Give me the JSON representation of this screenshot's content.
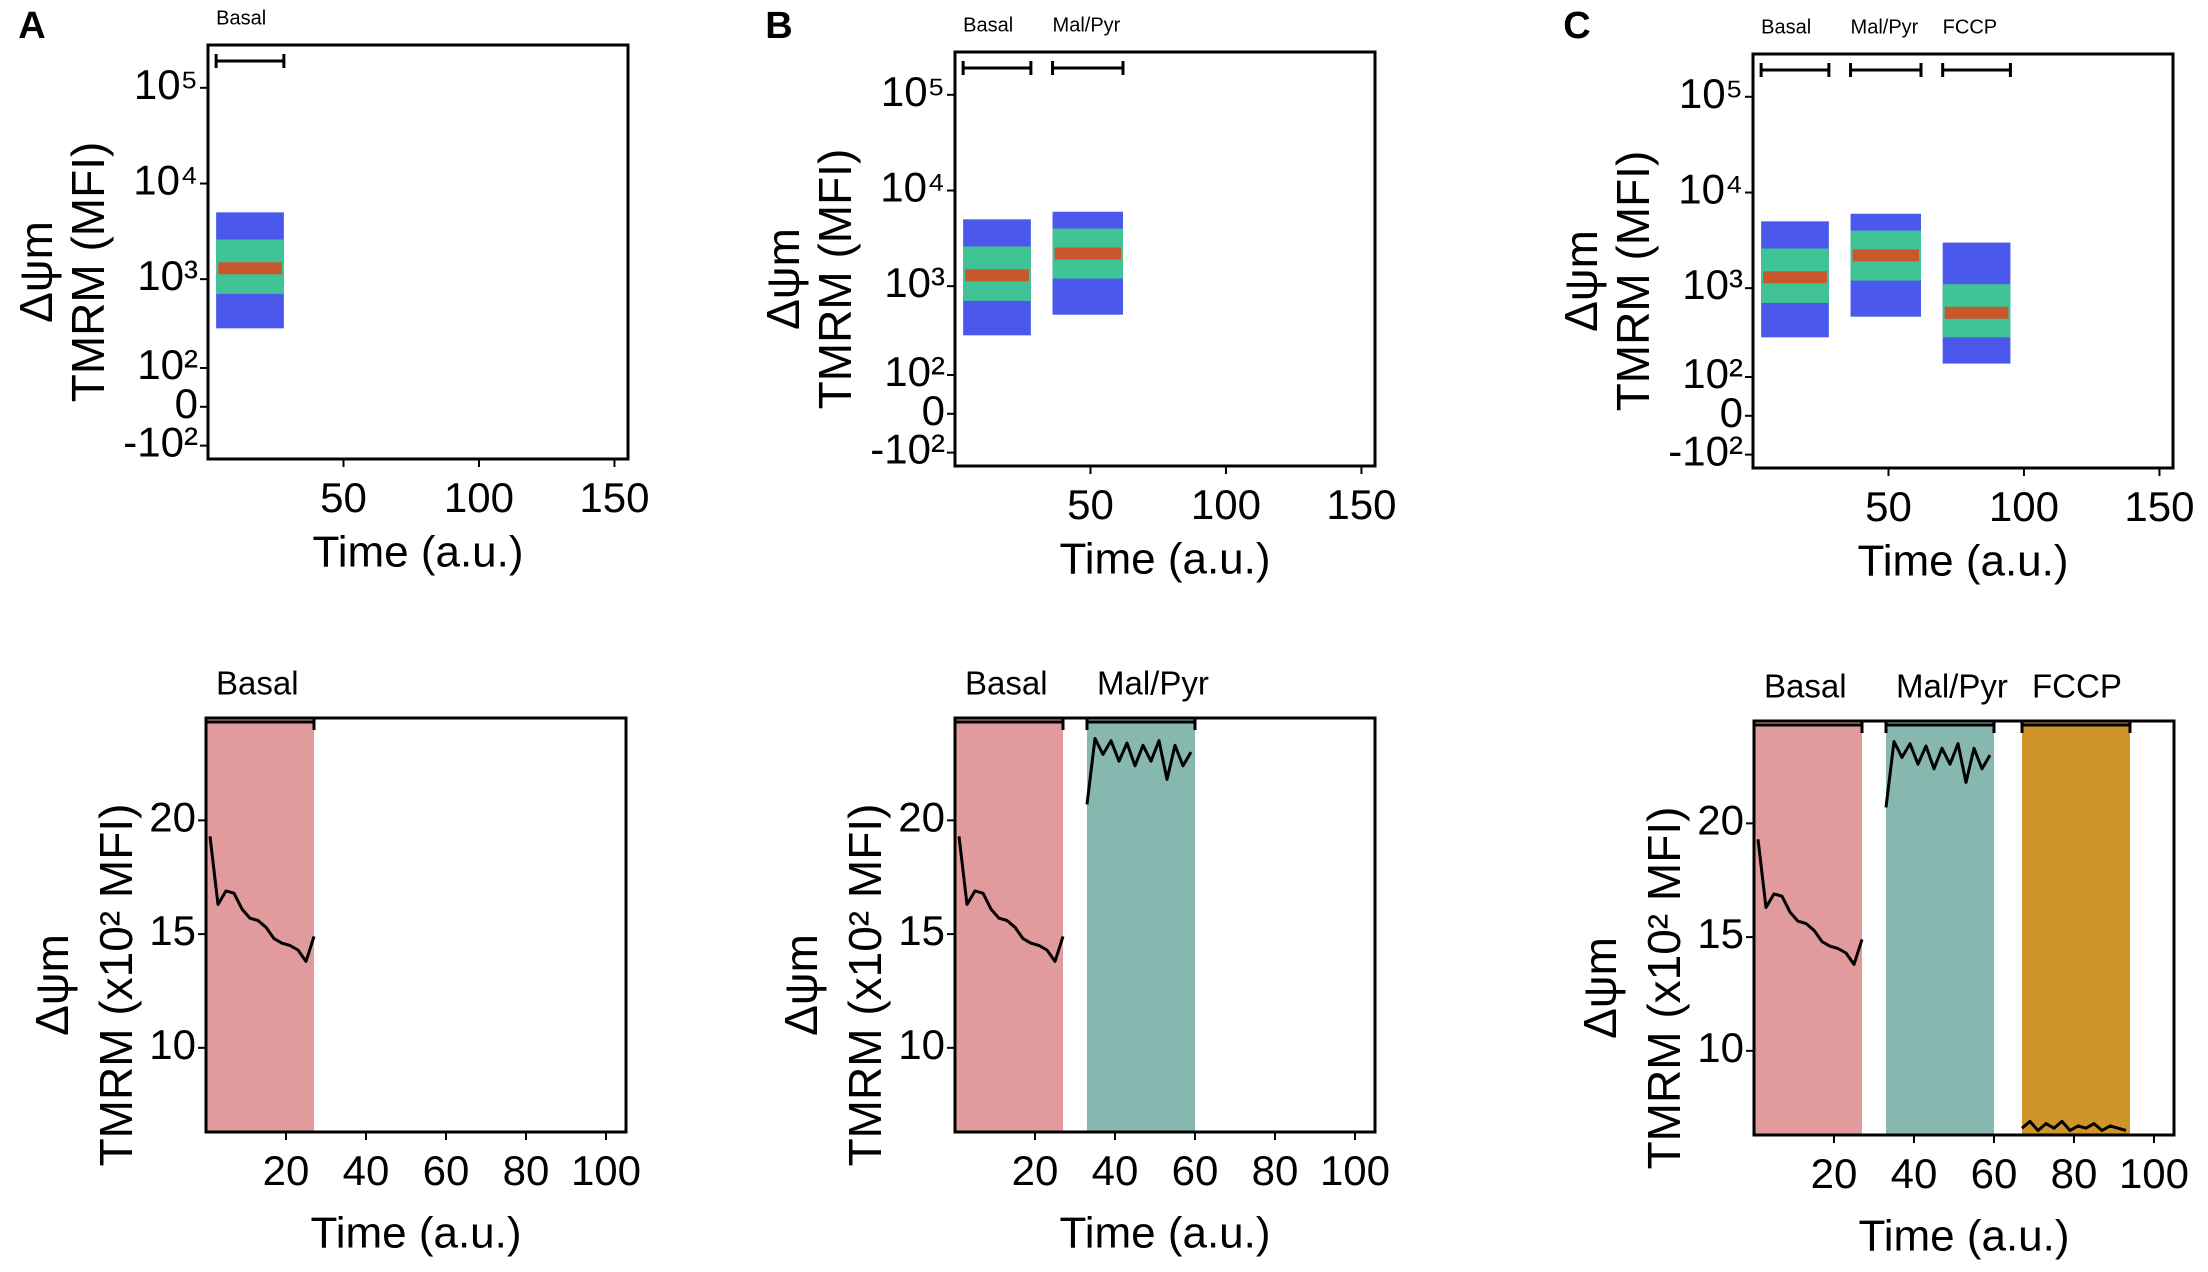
{
  "chart_data": [
    {
      "type": "density",
      "panel": "A",
      "xlabel": "Time (a.u.)",
      "ylabel": [
        "Δψm",
        "TMRM (MFI)"
      ],
      "xlim": [
        0,
        155
      ],
      "xticks": [
        50,
        100,
        150
      ],
      "ylim": [
        -150,
        280000
      ],
      "yscale": "biexponential",
      "yticks": [
        {
          "value": -100,
          "label": "-10²"
        },
        0,
        {
          "value": 100,
          "label": "10²"
        },
        {
          "value": 1000,
          "label": "10³"
        },
        {
          "value": 10000,
          "label": "10⁴"
        },
        {
          "value": 100000,
          "label": "10⁵"
        }
      ],
      "colors": {
        "range": "#2a3be8",
        "dense": "#3fd08c",
        "peak": "#e0441c"
      },
      "segments": [
        {
          "name": "Basal",
          "x": [
            3,
            28
          ],
          "range": [
            300,
            5000
          ],
          "dense": [
            700,
            2600
          ],
          "peak": 1300
        }
      ]
    },
    {
      "type": "density",
      "panel": "B",
      "xlabel": "Time (a.u.)",
      "ylabel": [
        "Δψm",
        "TMRM (MFI)"
      ],
      "xlim": [
        0,
        155
      ],
      "xticks": [
        50,
        100,
        150
      ],
      "ylim": [
        -150,
        280000
      ],
      "yscale": "biexponential",
      "yticks": [
        {
          "value": -100,
          "label": "-10²"
        },
        0,
        {
          "value": 100,
          "label": "10²"
        },
        {
          "value": 1000,
          "label": "10³"
        },
        {
          "value": 10000,
          "label": "10⁴"
        },
        {
          "value": 100000,
          "label": "10⁵"
        }
      ],
      "colors": {
        "range": "#2a3be8",
        "dense": "#3fd08c",
        "peak": "#e0441c"
      },
      "segments": [
        {
          "name": "Basal",
          "x": [
            3,
            28
          ],
          "range": [
            300,
            5000
          ],
          "dense": [
            700,
            2600
          ],
          "peak": 1300
        },
        {
          "name": "Mal/Pyr",
          "x": [
            36,
            62
          ],
          "range": [
            500,
            6000
          ],
          "dense": [
            1200,
            4000
          ],
          "peak": 2200
        }
      ]
    },
    {
      "type": "density",
      "panel": "C",
      "xlabel": "Time (a.u.)",
      "ylabel": [
        "Δψm",
        "TMRM (MFI)"
      ],
      "xlim": [
        0,
        155
      ],
      "xticks": [
        50,
        100,
        150
      ],
      "ylim": [
        -150,
        280000
      ],
      "yscale": "biexponential",
      "yticks": [
        {
          "value": -100,
          "label": "-10²"
        },
        0,
        {
          "value": 100,
          "label": "10²"
        },
        {
          "value": 1000,
          "label": "10³"
        },
        {
          "value": 10000,
          "label": "10⁴"
        },
        {
          "value": 100000,
          "label": "10⁵"
        }
      ],
      "colors": {
        "range": "#2a3be8",
        "dense": "#3fd08c",
        "peak": "#e0441c"
      },
      "segments": [
        {
          "name": "Basal",
          "x": [
            3,
            28
          ],
          "range": [
            300,
            5000
          ],
          "dense": [
            700,
            2600
          ],
          "peak": 1300
        },
        {
          "name": "Mal/Pyr",
          "x": [
            36,
            62
          ],
          "range": [
            500,
            6000
          ],
          "dense": [
            1200,
            4000
          ],
          "peak": 2200
        },
        {
          "name": "FCCP",
          "x": [
            70,
            95
          ],
          "range": [
            150,
            3000
          ],
          "dense": [
            300,
            1100
          ],
          "peak": 550
        }
      ]
    },
    {
      "type": "line",
      "xlabel": "Time (a.u.)",
      "ylabel": [
        "Δψm",
        "TMRM (x10² MFI)"
      ],
      "xlim": [
        0,
        105
      ],
      "xticks": [
        20,
        40,
        60,
        80,
        100
      ],
      "ylim": [
        6.3,
        24.5
      ],
      "yticks": [
        10,
        15,
        20
      ],
      "line_color": "#000000",
      "series": [
        {
          "name": "Basal",
          "color": "#e29b9c",
          "shade": [
            0,
            27
          ],
          "x": [
            1,
            3,
            5,
            7,
            9,
            11,
            13,
            15,
            17,
            19,
            21,
            23,
            25,
            27
          ],
          "values": [
            19.3,
            16.3,
            16.9,
            16.8,
            16.1,
            15.7,
            15.6,
            15.3,
            14.8,
            14.6,
            14.5,
            14.3,
            13.8,
            14.9
          ]
        }
      ]
    },
    {
      "type": "line",
      "xlabel": "Time (a.u.)",
      "ylabel": [
        "Δψm",
        "TMRM (x10² MFI)"
      ],
      "xlim": [
        0,
        105
      ],
      "xticks": [
        20,
        40,
        60,
        80,
        100
      ],
      "ylim": [
        6.3,
        24.5
      ],
      "yticks": [
        10,
        15,
        20
      ],
      "line_color": "#000000",
      "series": [
        {
          "name": "Basal",
          "color": "#e29b9c",
          "shade": [
            0,
            27
          ],
          "x": [
            1,
            3,
            5,
            7,
            9,
            11,
            13,
            15,
            17,
            19,
            21,
            23,
            25,
            27
          ],
          "values": [
            19.3,
            16.3,
            16.9,
            16.8,
            16.1,
            15.7,
            15.6,
            15.3,
            14.8,
            14.6,
            14.5,
            14.3,
            13.8,
            14.9
          ]
        },
        {
          "name": "Mal/Pyr",
          "color": "#86b8b0",
          "shade": [
            33,
            60
          ],
          "x": [
            33,
            35,
            37,
            39,
            41,
            43,
            45,
            47,
            49,
            51,
            53,
            55,
            57,
            59
          ],
          "values": [
            20.7,
            23.6,
            22.9,
            23.5,
            22.6,
            23.4,
            22.4,
            23.3,
            22.6,
            23.5,
            21.8,
            23.3,
            22.4,
            23.0
          ]
        }
      ]
    },
    {
      "type": "line",
      "xlabel": "Time (a.u.)",
      "ylabel": [
        "Δψm",
        "TMRM (x10² MFI)"
      ],
      "xlim": [
        0,
        105
      ],
      "xticks": [
        20,
        40,
        60,
        80,
        100
      ],
      "ylim": [
        6.3,
        24.5
      ],
      "yticks": [
        10,
        15,
        20
      ],
      "line_color": "#000000",
      "series": [
        {
          "name": "Basal",
          "color": "#e29b9c",
          "shade": [
            0,
            27
          ],
          "x": [
            1,
            3,
            5,
            7,
            9,
            11,
            13,
            15,
            17,
            19,
            21,
            23,
            25,
            27
          ],
          "values": [
            19.3,
            16.3,
            16.9,
            16.8,
            16.1,
            15.7,
            15.6,
            15.3,
            14.8,
            14.6,
            14.5,
            14.3,
            13.8,
            14.9
          ]
        },
        {
          "name": "Mal/Pyr",
          "color": "#86b8b0",
          "shade": [
            33,
            60
          ],
          "x": [
            33,
            35,
            37,
            39,
            41,
            43,
            45,
            47,
            49,
            51,
            53,
            55,
            57,
            59
          ],
          "values": [
            20.7,
            23.6,
            22.9,
            23.5,
            22.6,
            23.4,
            22.4,
            23.3,
            22.6,
            23.5,
            21.8,
            23.3,
            22.4,
            23.0
          ]
        },
        {
          "name": "FCCP",
          "color": "#cf9528",
          "shade": [
            67,
            94
          ],
          "x": [
            67,
            69,
            71,
            73,
            75,
            77,
            79,
            81,
            83,
            85,
            87,
            89,
            91,
            93
          ],
          "values": [
            6.6,
            6.9,
            6.5,
            6.8,
            6.6,
            6.9,
            6.5,
            6.7,
            6.6,
            6.8,
            6.5,
            6.7,
            6.6,
            6.5
          ]
        }
      ]
    }
  ]
}
